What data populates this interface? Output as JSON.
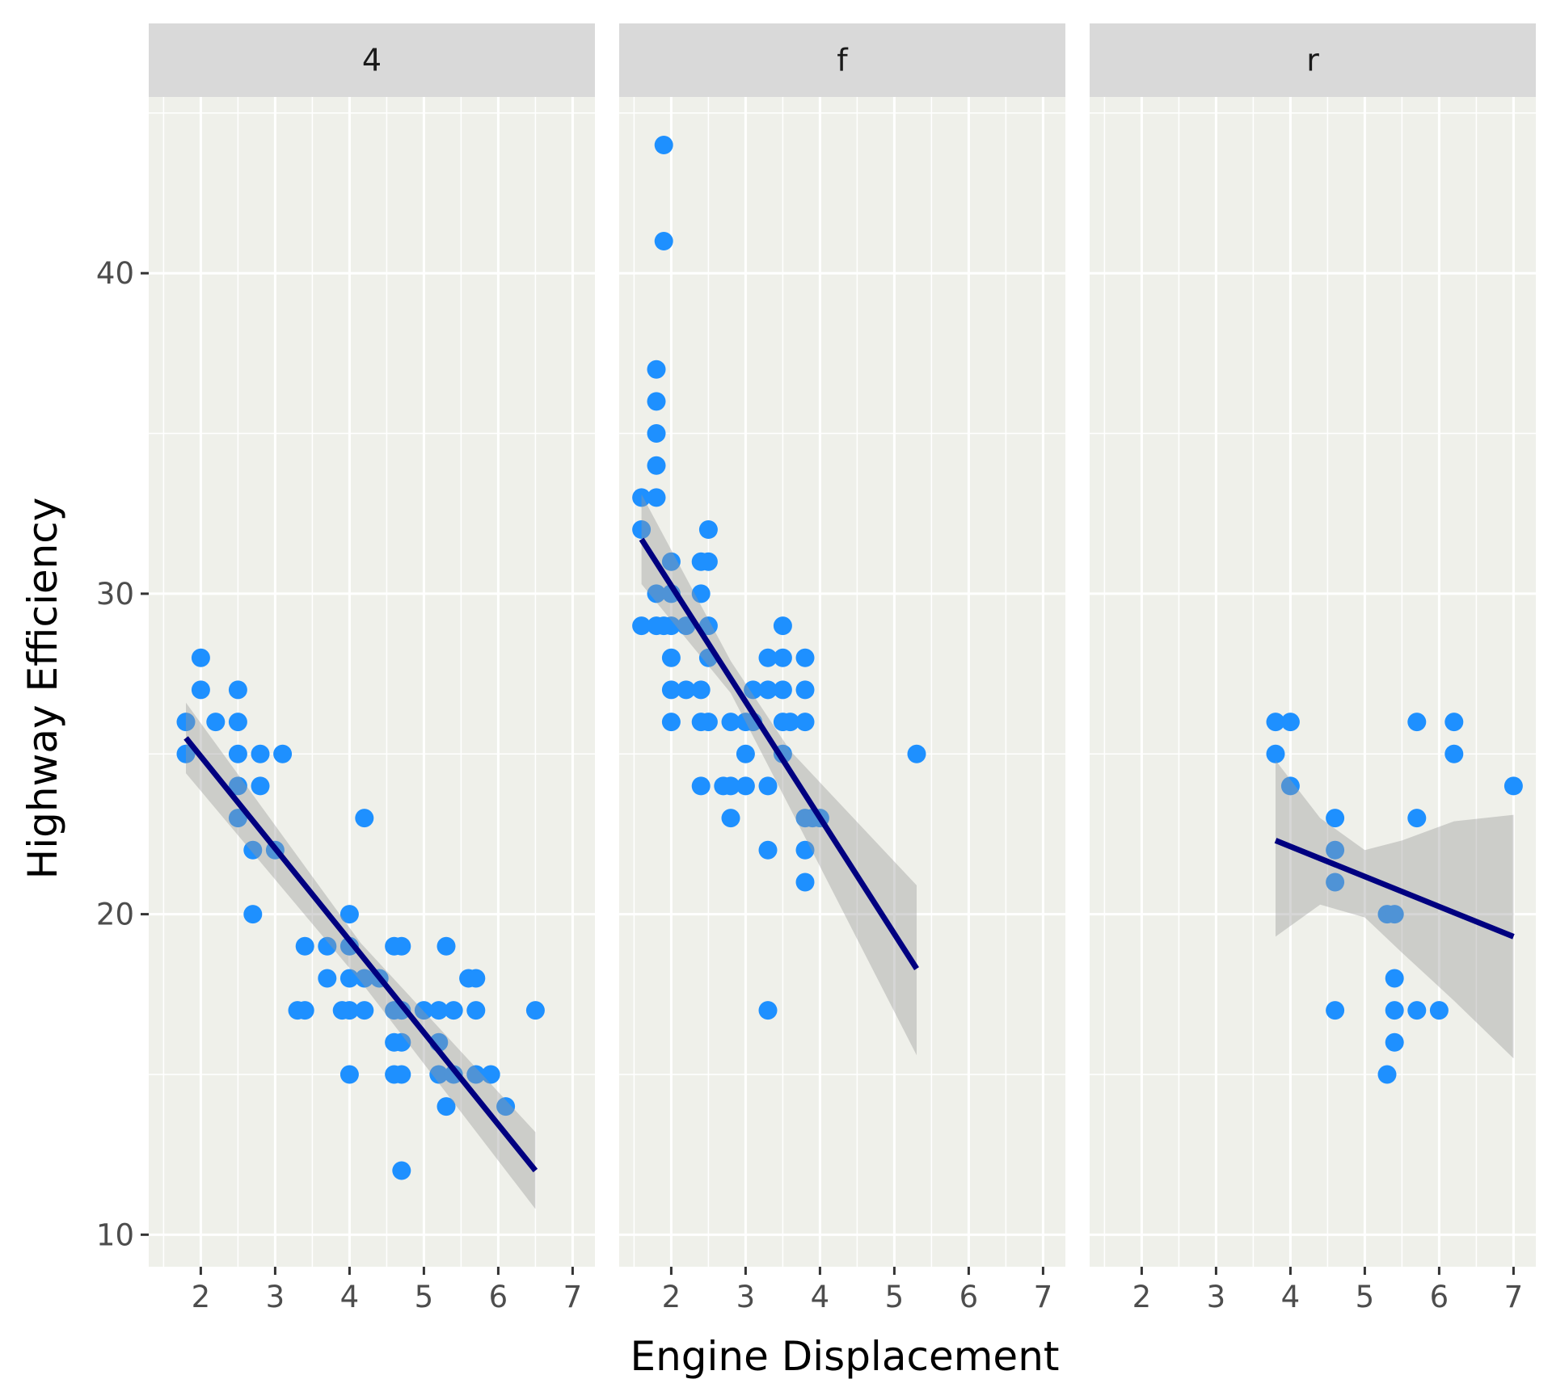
{
  "chart_data": {
    "type": "scatter",
    "facet_variable_labels": [
      "4",
      "f",
      "r"
    ],
    "xlabel": "Engine Displacement",
    "ylabel": "Highway Efficiency",
    "xlim": [
      1.3,
      7.3
    ],
    "ylim": [
      9.0,
      45.5
    ],
    "x_ticks": [
      "2",
      "3",
      "4",
      "5",
      "6",
      "7"
    ],
    "y_ticks": [
      "10",
      "20",
      "30",
      "40"
    ],
    "grid": true,
    "point_color": "#1E90FF",
    "fit_color": "#000080",
    "band_color": "#999999",
    "panel_background": "#EFF0EA",
    "strip_background": "#D9D9D9",
    "facets": [
      {
        "label": "4",
        "points": [
          [
            1.8,
            26
          ],
          [
            1.8,
            25
          ],
          [
            2.0,
            28
          ],
          [
            2.0,
            27
          ],
          [
            2.2,
            26
          ],
          [
            2.5,
            27
          ],
          [
            2.5,
            26
          ],
          [
            2.5,
            25
          ],
          [
            2.5,
            24
          ],
          [
            2.5,
            23
          ],
          [
            2.7,
            22
          ],
          [
            2.7,
            20
          ],
          [
            2.8,
            25
          ],
          [
            2.8,
            24
          ],
          [
            3.1,
            25
          ],
          [
            3.0,
            22
          ],
          [
            3.3,
            17
          ],
          [
            3.4,
            17
          ],
          [
            3.4,
            19
          ],
          [
            3.7,
            19
          ],
          [
            3.7,
            18
          ],
          [
            3.9,
            17
          ],
          [
            4.0,
            20
          ],
          [
            4.0,
            19
          ],
          [
            4.0,
            18
          ],
          [
            4.0,
            17
          ],
          [
            4.0,
            15
          ],
          [
            4.2,
            23
          ],
          [
            4.2,
            18
          ],
          [
            4.2,
            17
          ],
          [
            4.4,
            18
          ],
          [
            4.6,
            19
          ],
          [
            4.6,
            17
          ],
          [
            4.6,
            16
          ],
          [
            4.6,
            15
          ],
          [
            4.7,
            19
          ],
          [
            4.7,
            17
          ],
          [
            4.7,
            16
          ],
          [
            4.7,
            15
          ],
          [
            4.7,
            12
          ],
          [
            5.0,
            17
          ],
          [
            5.2,
            17
          ],
          [
            5.2,
            16
          ],
          [
            5.2,
            15
          ],
          [
            5.3,
            19
          ],
          [
            5.3,
            14
          ],
          [
            5.4,
            17
          ],
          [
            5.4,
            15
          ],
          [
            5.6,
            18
          ],
          [
            5.7,
            18
          ],
          [
            5.7,
            17
          ],
          [
            5.7,
            15
          ],
          [
            5.9,
            15
          ],
          [
            6.1,
            14
          ],
          [
            6.5,
            17
          ]
        ],
        "fit": {
          "x": [
            1.8,
            6.5
          ],
          "y": [
            25.5,
            12.0
          ]
        },
        "band": {
          "x": [
            1.8,
            4.15,
            6.5
          ],
          "upper": [
            26.6,
            19.1,
            13.2
          ],
          "lower": [
            24.4,
            17.9,
            10.8
          ]
        }
      },
      {
        "label": "f",
        "points": [
          [
            1.6,
            33
          ],
          [
            1.6,
            32
          ],
          [
            1.6,
            29
          ],
          [
            1.8,
            37
          ],
          [
            1.8,
            36
          ],
          [
            1.8,
            35
          ],
          [
            1.8,
            34
          ],
          [
            1.8,
            33
          ],
          [
            1.8,
            30
          ],
          [
            1.8,
            29
          ],
          [
            1.9,
            44
          ],
          [
            1.9,
            41
          ],
          [
            1.9,
            29
          ],
          [
            2.0,
            31
          ],
          [
            2.0,
            30
          ],
          [
            2.0,
            29
          ],
          [
            2.0,
            28
          ],
          [
            2.0,
            27
          ],
          [
            2.0,
            26
          ],
          [
            2.2,
            27
          ],
          [
            2.2,
            29
          ],
          [
            2.4,
            31
          ],
          [
            2.4,
            30
          ],
          [
            2.4,
            27
          ],
          [
            2.4,
            26
          ],
          [
            2.4,
            24
          ],
          [
            2.5,
            32
          ],
          [
            2.5,
            31
          ],
          [
            2.5,
            29
          ],
          [
            2.5,
            28
          ],
          [
            2.5,
            26
          ],
          [
            2.7,
            24
          ],
          [
            2.8,
            26
          ],
          [
            2.8,
            24
          ],
          [
            2.8,
            23
          ],
          [
            3.0,
            26
          ],
          [
            3.0,
            25
          ],
          [
            3.0,
            24
          ],
          [
            3.1,
            27
          ],
          [
            3.1,
            26
          ],
          [
            3.3,
            28
          ],
          [
            3.3,
            27
          ],
          [
            3.3,
            24
          ],
          [
            3.3,
            22
          ],
          [
            3.3,
            17
          ],
          [
            3.5,
            29
          ],
          [
            3.5,
            28
          ],
          [
            3.5,
            27
          ],
          [
            3.5,
            26
          ],
          [
            3.5,
            25
          ],
          [
            3.6,
            26
          ],
          [
            3.8,
            28
          ],
          [
            3.8,
            27
          ],
          [
            3.8,
            26
          ],
          [
            3.8,
            23
          ],
          [
            3.8,
            22
          ],
          [
            3.8,
            21
          ],
          [
            3.9,
            23
          ],
          [
            4.0,
            23
          ],
          [
            5.3,
            25
          ]
        ],
        "fit": {
          "x": [
            1.6,
            5.3
          ],
          "y": [
            31.7,
            18.3
          ]
        },
        "band": {
          "x": [
            1.6,
            2.8,
            3.6,
            5.3
          ],
          "upper": [
            33.1,
            27.9,
            25.1,
            20.9
          ],
          "lower": [
            30.3,
            26.9,
            23.3,
            15.6
          ]
        }
      },
      {
        "label": "r",
        "points": [
          [
            3.8,
            26
          ],
          [
            3.8,
            25
          ],
          [
            4.0,
            26
          ],
          [
            4.0,
            24
          ],
          [
            4.6,
            23
          ],
          [
            4.6,
            22
          ],
          [
            4.6,
            21
          ],
          [
            4.6,
            17
          ],
          [
            5.3,
            20
          ],
          [
            5.3,
            15
          ],
          [
            5.4,
            20
          ],
          [
            5.4,
            18
          ],
          [
            5.4,
            17
          ],
          [
            5.4,
            16
          ],
          [
            5.7,
            26
          ],
          [
            5.7,
            23
          ],
          [
            5.7,
            17
          ],
          [
            6.0,
            17
          ],
          [
            6.2,
            26
          ],
          [
            6.2,
            25
          ],
          [
            7.0,
            24
          ]
        ],
        "fit": {
          "x": [
            3.8,
            7.0
          ],
          "y": [
            22.3,
            19.3
          ]
        },
        "band": {
          "x": [
            3.8,
            4.4,
            5.0,
            5.5,
            6.2,
            7.0
          ],
          "upper": [
            24.8,
            23.0,
            22.0,
            22.3,
            22.9,
            23.1
          ],
          "lower": [
            19.3,
            20.3,
            19.9,
            18.8,
            17.3,
            15.5
          ]
        }
      }
    ]
  }
}
